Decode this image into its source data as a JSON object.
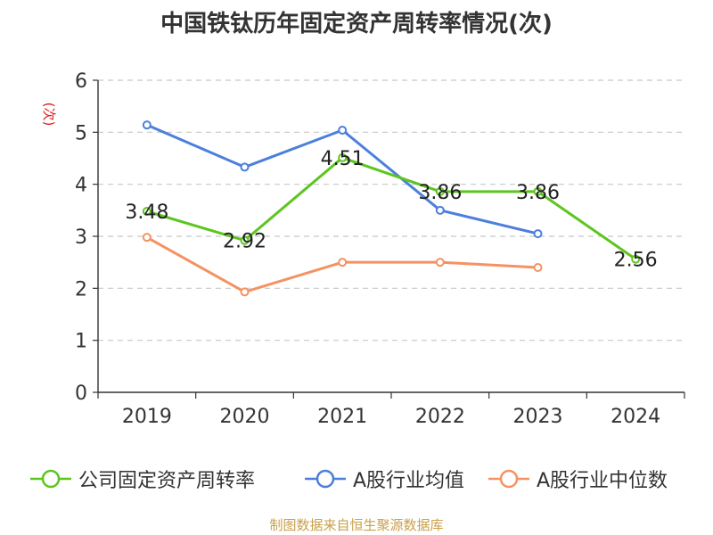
{
  "chart_data": {
    "type": "line",
    "title": "中国铁钛历年固定资产周转率情况(次)",
    "ylabel": "(次)",
    "xlabel": "",
    "categories": [
      "2019",
      "2020",
      "2021",
      "2022",
      "2023",
      "2024"
    ],
    "ylim": [
      0,
      6
    ],
    "yticks": [
      "0",
      "1",
      "2",
      "3",
      "4",
      "5",
      "6"
    ],
    "grid": true,
    "legend_position": "bottom",
    "series": [
      {
        "name": "公司固定资产周转率",
        "color": "#5dc520",
        "values": [
          3.48,
          2.92,
          4.51,
          3.86,
          3.86,
          2.56
        ],
        "labels": [
          "3.48",
          "2.92",
          "4.51",
          "3.86",
          "3.86",
          "2.56"
        ]
      },
      {
        "name": "A股行业均值",
        "color": "#4c7fdc",
        "values": [
          5.14,
          4.33,
          5.04,
          3.5,
          3.05,
          null
        ]
      },
      {
        "name": "A股行业中位数",
        "color": "#f59262",
        "values": [
          2.98,
          1.93,
          2.5,
          2.5,
          2.4,
          null
        ]
      }
    ]
  },
  "footer": {
    "source": "制图数据来自恒生聚源数据库"
  }
}
